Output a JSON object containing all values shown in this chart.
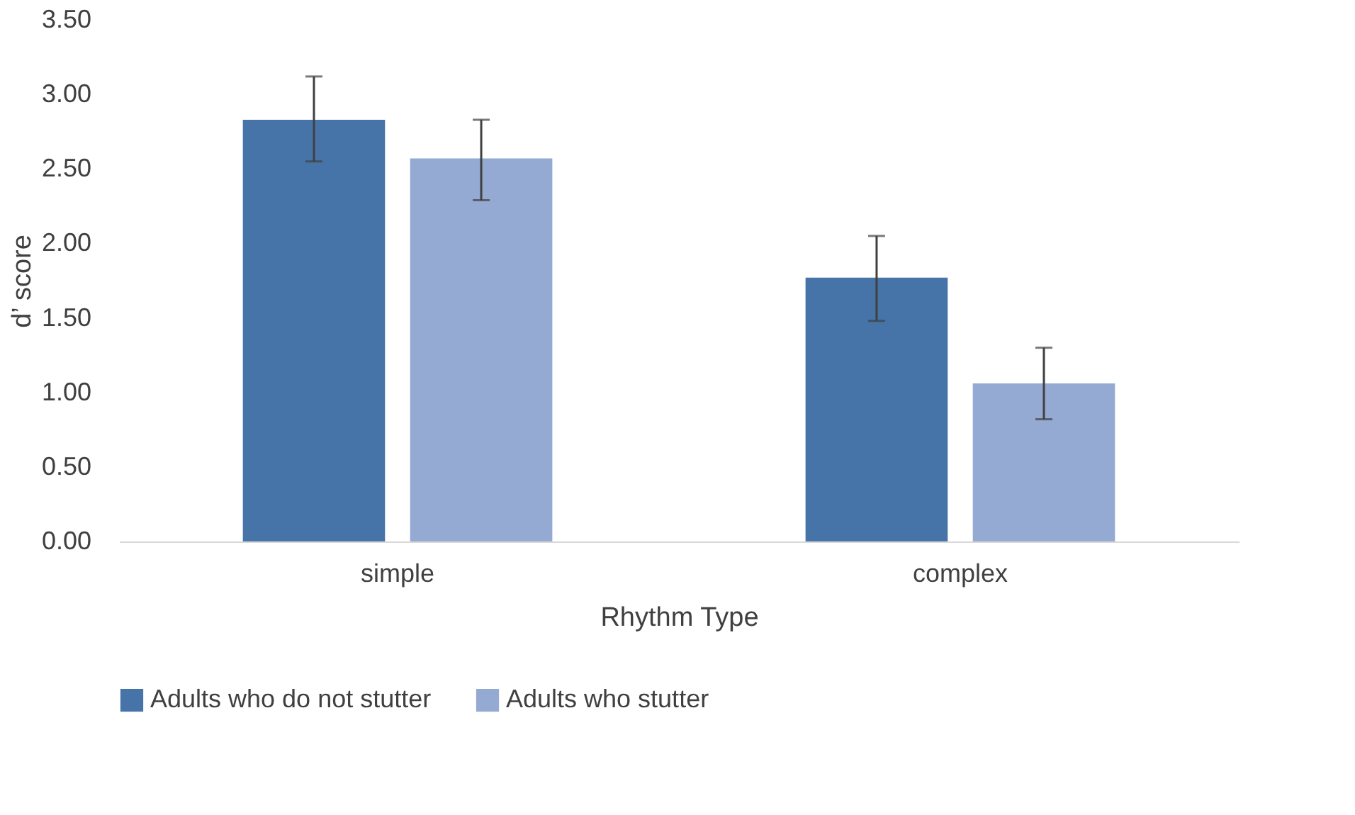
{
  "chart_data": {
    "type": "bar",
    "xlabel": "Rhythm Type",
    "ylabel": "d’ score",
    "categories": [
      "simple",
      "complex"
    ],
    "series": [
      {
        "name": "Adults who do not stutter",
        "color": "#4674a9",
        "values": [
          2.83,
          1.77
        ],
        "errors": [
          [
            2.55,
            3.12
          ],
          [
            1.48,
            2.05
          ]
        ]
      },
      {
        "name": "Adults who stutter",
        "color": "#95aad2",
        "values": [
          2.57,
          1.06
        ],
        "errors": [
          [
            2.29,
            2.83
          ],
          [
            0.82,
            1.3
          ]
        ]
      }
    ],
    "ylim": [
      0,
      3.5
    ],
    "yticks": [
      {
        "value": 0,
        "label": "0.00"
      },
      {
        "value": 0.5,
        "label": "0.50"
      },
      {
        "value": 1,
        "label": "1.00"
      },
      {
        "value": 1.5,
        "label": "1.50"
      },
      {
        "value": 2,
        "label": "2.00"
      },
      {
        "value": 2.5,
        "label": "2.50"
      },
      {
        "value": 3,
        "label": "3.00"
      },
      {
        "value": 3.5,
        "label": "3.50"
      }
    ],
    "grid": false,
    "legend": "bottom"
  }
}
